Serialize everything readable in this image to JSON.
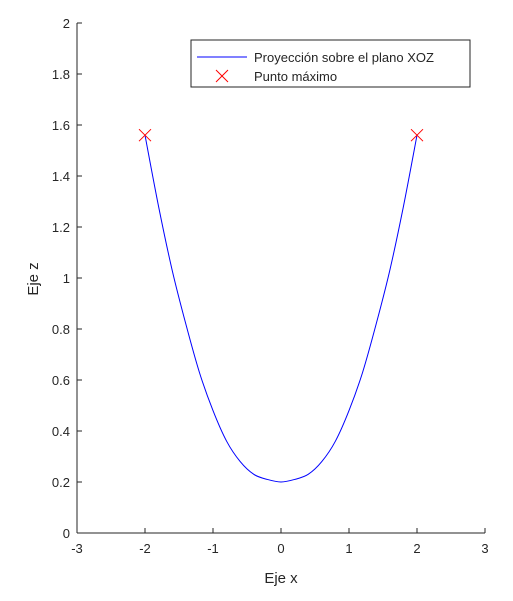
{
  "chart_data": {
    "type": "line",
    "xlabel": "Eje x",
    "ylabel": "Eje z",
    "xlim": [
      -3,
      3
    ],
    "ylim": [
      0,
      2
    ],
    "xticks": [
      -3,
      -2,
      -1,
      0,
      1,
      2,
      3
    ],
    "yticks": [
      0,
      0.2,
      0.4,
      0.6,
      0.8,
      1,
      1.2,
      1.4,
      1.6,
      1.8,
      2
    ],
    "xtick_labels": [
      "-3",
      "-2",
      "-1",
      "0",
      "1",
      "2",
      "3"
    ],
    "ytick_labels": [
      "0",
      "0.2",
      "0.4",
      "0.6",
      "0.8",
      "1",
      "1.2",
      "1.4",
      "1.6",
      "1.8",
      "2"
    ],
    "grid": false,
    "legend_position": "top-right",
    "series": [
      {
        "name": "Proyección sobre el plano XOZ",
        "style": "line",
        "color": "#0000ff",
        "x": [
          -2,
          -1.8,
          -1.6,
          -1.4,
          -1.2,
          -1,
          -0.8,
          -0.6,
          -0.4,
          -0.2,
          0,
          0.2,
          0.4,
          0.6,
          0.8,
          1,
          1.2,
          1.4,
          1.6,
          1.8,
          2
        ],
        "y": [
          1.56,
          1.28,
          1.03,
          0.82,
          0.63,
          0.48,
          0.36,
          0.28,
          0.23,
          0.21,
          0.2,
          0.21,
          0.23,
          0.28,
          0.36,
          0.48,
          0.63,
          0.82,
          1.03,
          1.28,
          1.56
        ]
      },
      {
        "name": "Punto máximo",
        "style": "marker",
        "marker": "x",
        "color": "#ff0000",
        "x": [
          -2,
          2
        ],
        "y": [
          1.56,
          1.56
        ]
      }
    ]
  }
}
